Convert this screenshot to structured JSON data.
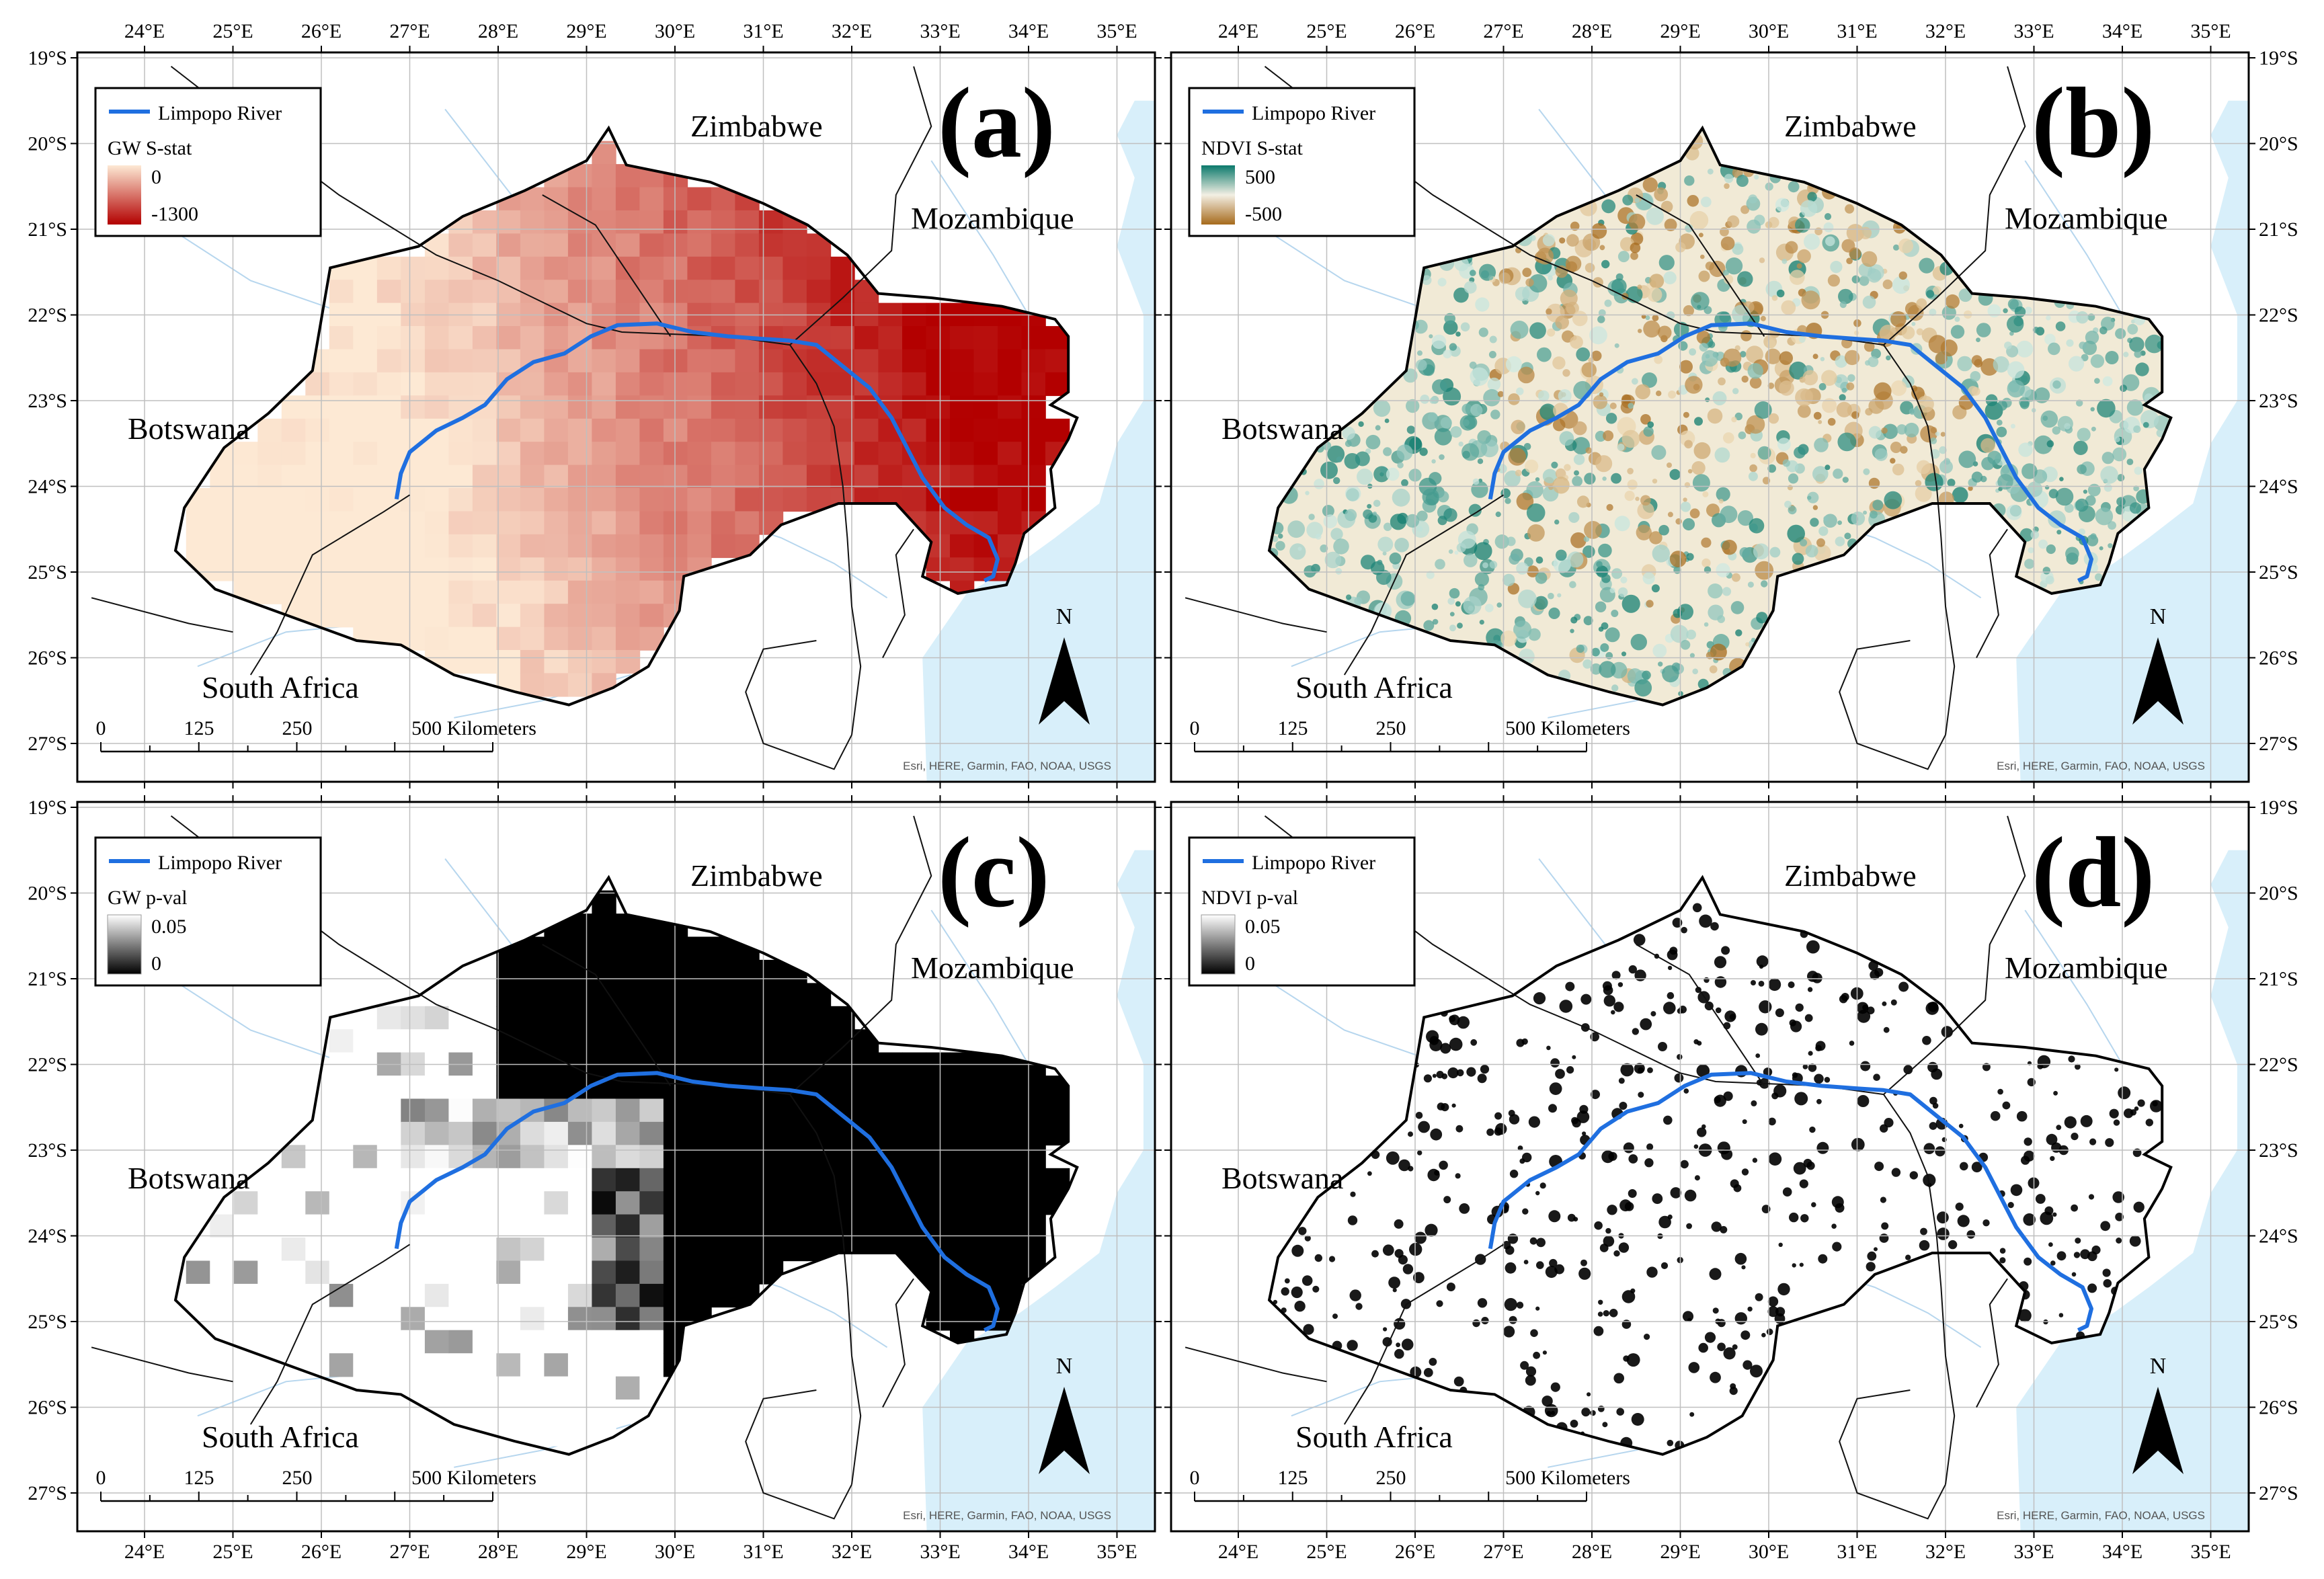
{
  "coordinates": {
    "lon_ticks": [
      "24°E",
      "25°E",
      "26°E",
      "27°E",
      "28°E",
      "29°E",
      "30°E",
      "31°E",
      "32°E",
      "33°E",
      "34°E",
      "35°E"
    ],
    "lat_ticks": [
      "19°S",
      "20°S",
      "21°S",
      "22°S",
      "23°S",
      "24°S",
      "25°S",
      "26°S",
      "27°S"
    ]
  },
  "countries": {
    "zimbabwe": "Zimbabwe",
    "mozambique": "Mozambique",
    "botswana": "Botswana",
    "south_africa": "South Africa"
  },
  "scalebar": {
    "t0": "0",
    "t1": "125",
    "t2": "250",
    "t3": "500 Kilometers"
  },
  "north_label": "N",
  "attribution": "Esri, HERE, Garmin, FAO, NOAA, USGS",
  "river_label": "Limpopo River",
  "panels": [
    {
      "letter": "(a)",
      "legend_title": "GW S-stat",
      "legend_top": "0",
      "legend_bottom": "-1300",
      "color_top": "#fde9d4",
      "color_bottom": "#b30000"
    },
    {
      "letter": "(b)",
      "legend_title": "NDVI S-stat",
      "legend_top": "500",
      "legend_bottom": "-500",
      "color_top": "#0b7a6c",
      "color_bottom": "#a66a1c"
    },
    {
      "letter": "(c)",
      "legend_title": "GW p-val",
      "legend_top": "0.05",
      "legend_bottom": "0",
      "color_top": "#ffffff",
      "color_bottom": "#000000"
    },
    {
      "letter": "(d)",
      "legend_title": "NDVI p-val",
      "legend_top": "0.05",
      "legend_bottom": "0",
      "color_top": "#ffffff",
      "color_bottom": "#000000"
    }
  ],
  "colors": {
    "river": "#1f6fe0",
    "ocean": "#d8effa",
    "grid": "#bfbfbf",
    "border": "#000000"
  }
}
